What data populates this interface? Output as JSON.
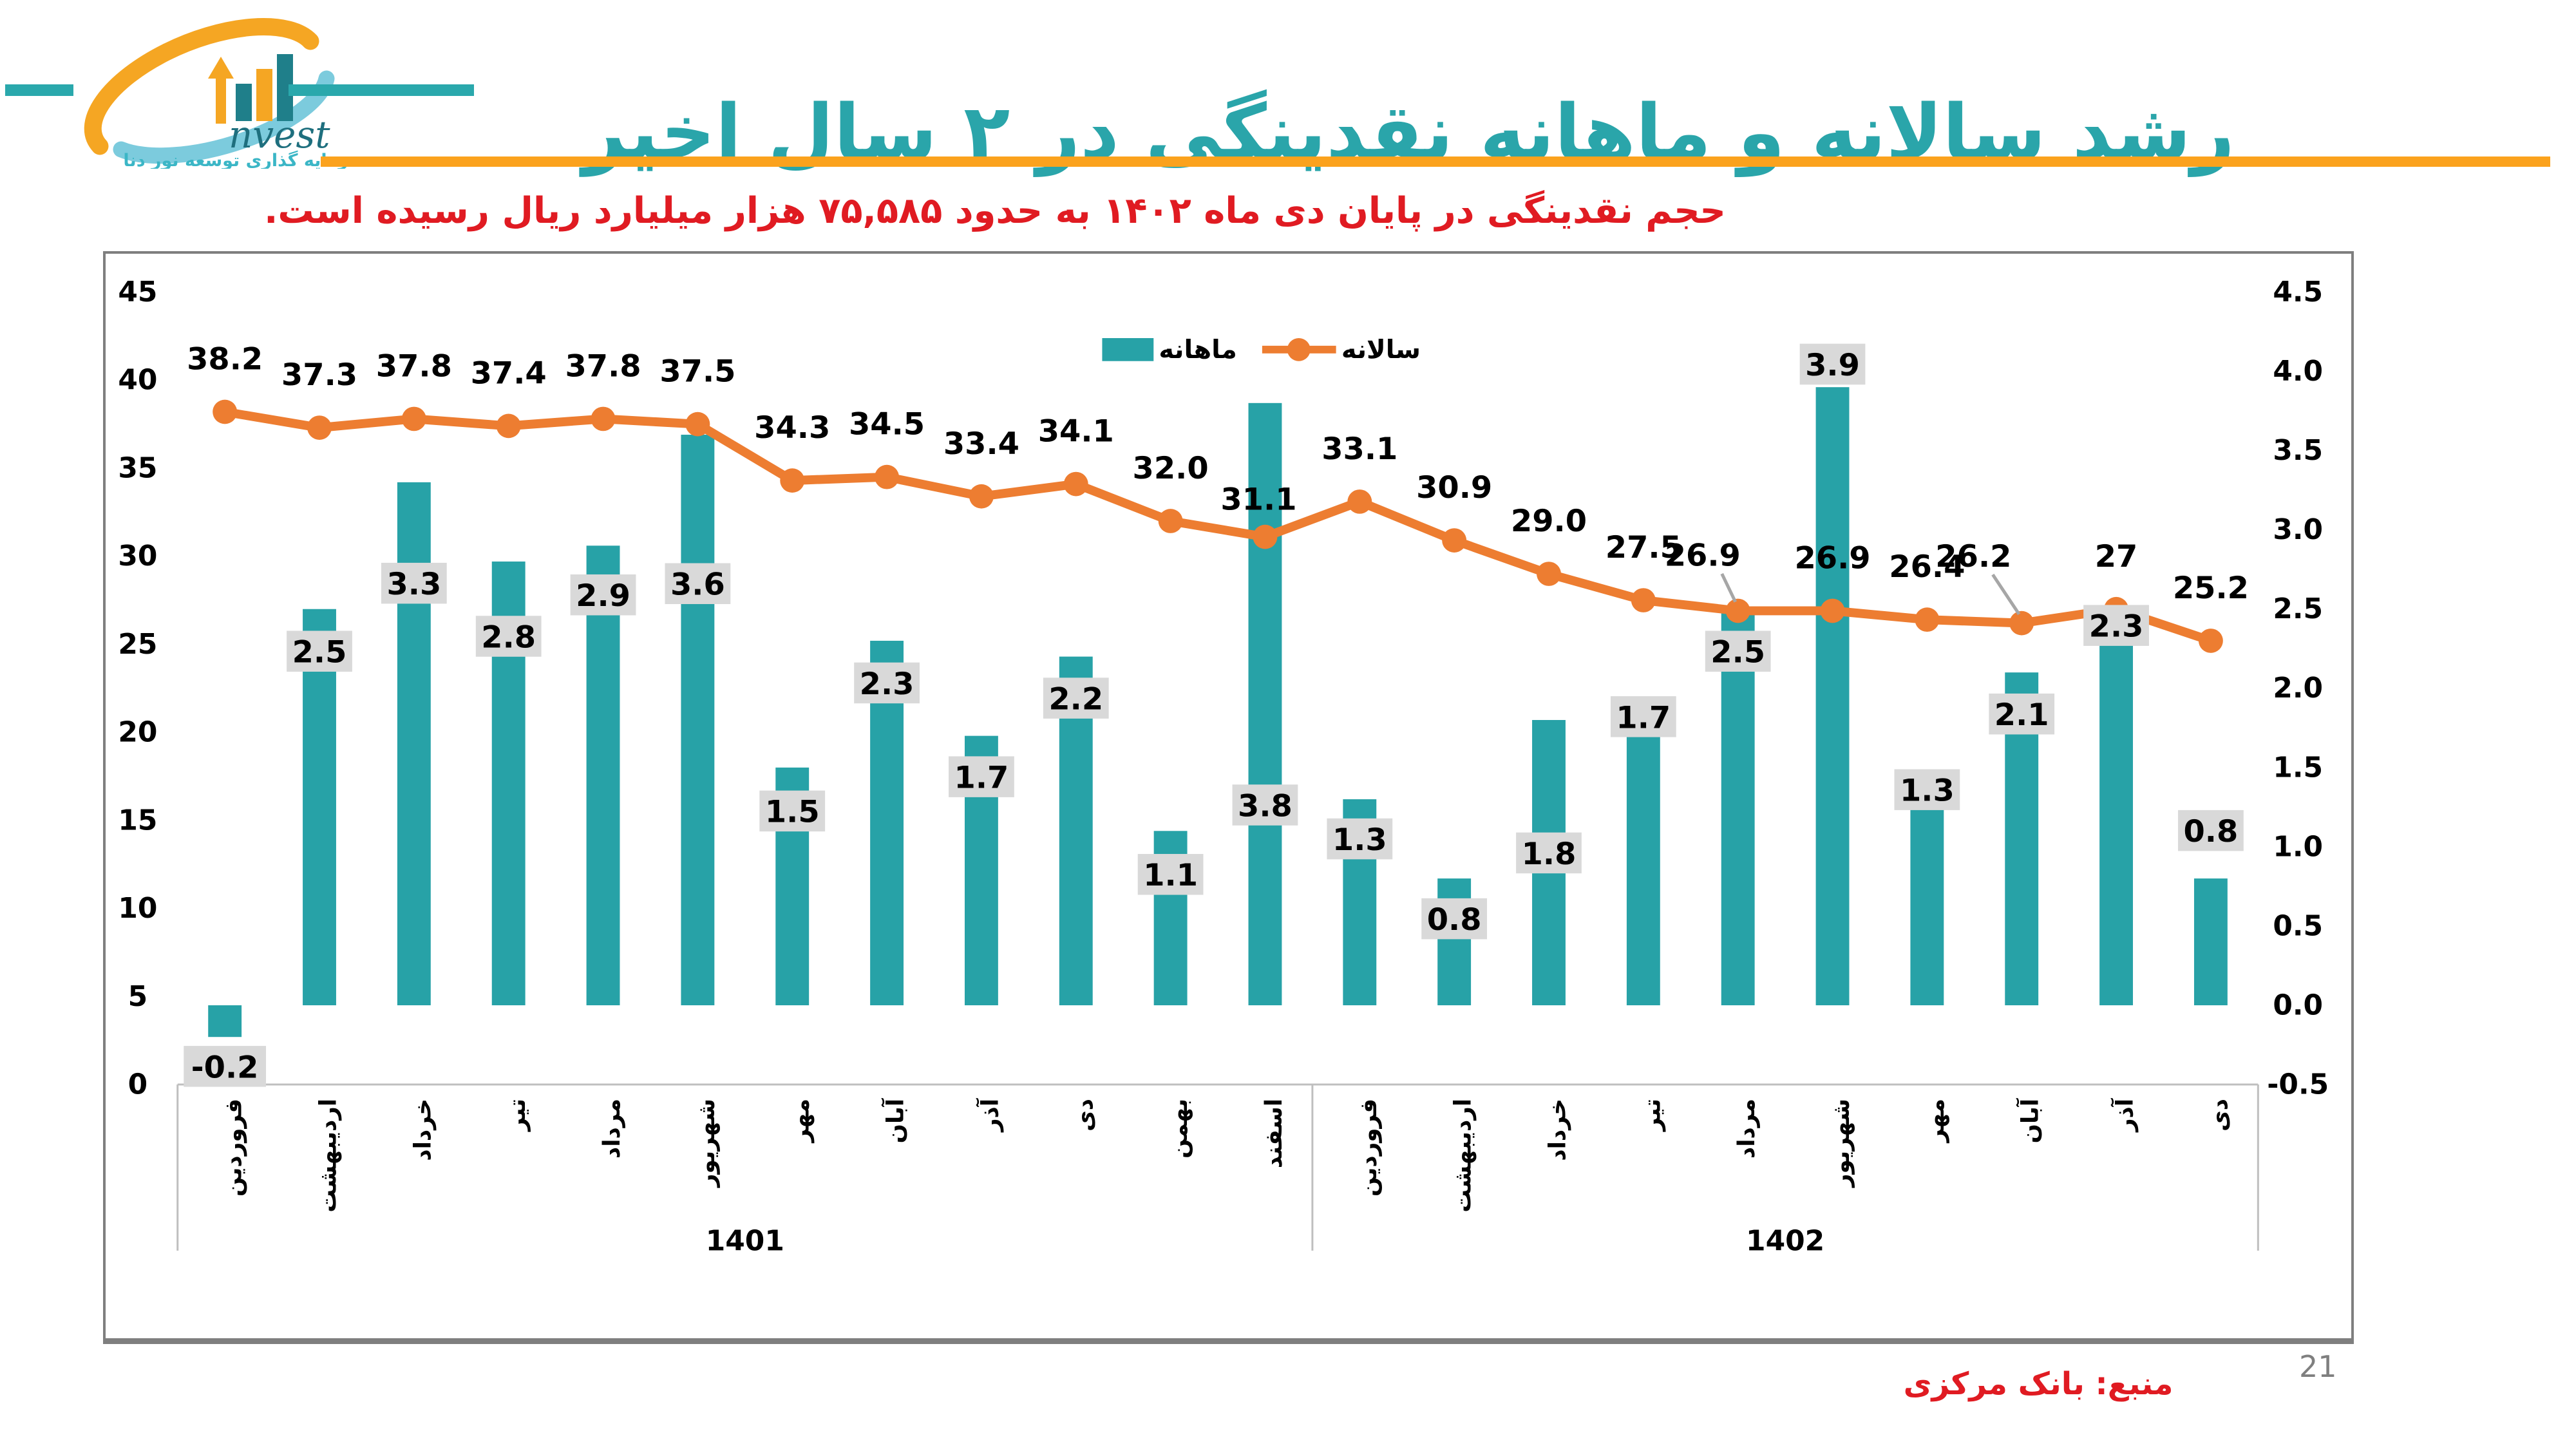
{
  "header": {
    "logo": {
      "brand": "nvest",
      "tagline": "سرمایه گذاری توسعه نور دنا"
    },
    "title": "رشد سالانه و ماهانه نقدینگی در ۲ سال اخیر",
    "subtitle": "حجم نقدینگی در پایان دی ماه ۱۴۰۲ به حدود ۷۵,۵۸۵ هزار میلیارد ریال رسیده است."
  },
  "footer": {
    "source": "منبع: بانک مرکزی",
    "page_number": "21"
  },
  "colors": {
    "bar_teal": "#27A2A7",
    "line_orange": "#ED7D31",
    "underline_orange": "#FBA21D",
    "title_teal": "#2AA5AA",
    "accent_red": "#E01B22",
    "label_bg_gray": "#D9D9D9",
    "chart_border_gray": "#7F7F7F",
    "axis_line_gray": "#BFBFBF",
    "leader_gray": "#A6A6A6",
    "text_black": "#000000",
    "logo_orange": "#F5A623",
    "logo_lightblue": "#7CCBDD",
    "logo_darkteal": "#1F7F8A"
  },
  "chart_data": {
    "type": "bar+line",
    "legend": [
      {
        "label": "ماهانه",
        "type": "bar",
        "color": "#27A2A7"
      },
      {
        "label": "سالانه",
        "type": "line",
        "color": "#ED7D31"
      }
    ],
    "left_axis": {
      "title": "",
      "min": 0,
      "max": 45,
      "ticks": [
        "45",
        "40",
        "35",
        "30",
        "25",
        "20",
        "15",
        "10",
        "5",
        "0"
      ]
    },
    "right_axis": {
      "title": "",
      "min": -0.5,
      "max": 4.5,
      "ticks": [
        "4.5",
        "4.0",
        "3.5",
        "3.0",
        "2.5",
        "2.0",
        "1.5",
        "1.0",
        "0.5",
        "0.0",
        "-0.5"
      ]
    },
    "groups": [
      {
        "year": "1401",
        "months": [
          "فروردین",
          "اردیبهشت",
          "خرداد",
          "تیر",
          "مرداد",
          "شهریور",
          "مهر",
          "آبان",
          "آذر",
          "دی",
          "بهمن",
          "اسفند"
        ]
      },
      {
        "year": "1402",
        "months": [
          "فروردین",
          "اردیبهشت",
          "خرداد",
          "تیر",
          "مرداد",
          "شهریور",
          "مهر",
          "آبان",
          "آذر",
          "دی"
        ]
      }
    ],
    "series": [
      {
        "name": "ماهانه",
        "type": "bar",
        "axis": "right",
        "values": [
          -0.2,
          2.5,
          3.3,
          2.8,
          2.9,
          3.6,
          1.5,
          2.3,
          1.7,
          2.2,
          1.1,
          3.8,
          1.3,
          0.8,
          1.8,
          1.7,
          2.5,
          3.9,
          1.3,
          2.1,
          2.3,
          0.8
        ],
        "labels": [
          "-0.2",
          "2.5",
          "3.3",
          "2.8",
          "2.9",
          "3.6",
          "1.5",
          "2.3",
          "1.7",
          "2.2",
          "1.1",
          "3.8",
          "1.3",
          "0.8",
          "1.8",
          "1.7",
          "2.5",
          "3.9",
          "1.3",
          "2.1",
          "2.3",
          "0.8"
        ]
      },
      {
        "name": "سالانه",
        "type": "line",
        "axis": "left",
        "values": [
          38.2,
          37.3,
          37.8,
          37.4,
          37.8,
          37.5,
          34.3,
          34.5,
          33.4,
          34.1,
          32.0,
          31.1,
          33.1,
          30.9,
          29.0,
          27.5,
          26.9,
          26.9,
          26.4,
          26.2,
          27,
          25.2
        ],
        "labels": [
          "38.2",
          "37.3",
          "37.8",
          "37.4",
          "37.8",
          "37.5",
          "34.3",
          "34.5",
          "33.4",
          "34.1",
          "32.0",
          "31.1",
          "33.1",
          "30.9",
          "29.0",
          "27.5",
          "26.9",
          "26.9",
          "26.4",
          "26.2",
          "27",
          "25.2"
        ]
      }
    ],
    "layout": {
      "grid": false,
      "legend_position": "top-center",
      "bar_label_dy": [
        0,
        66,
        158,
        117,
        77,
        233,
        68,
        66,
        64,
        65,
        68,
        629,
        62,
        63,
        208,
        -30,
        66,
        -36,
        -15,
        65,
        -24,
        -75
      ],
      "line_label_offset_default": [
        0,
        -82
      ],
      "line_label_offsets": {
        "11": [
          -10,
          -58
        ],
        "16": [
          -55,
          -86
        ],
        "19": [
          -75,
          -104
        ]
      },
      "leader_indices": [
        16,
        19
      ]
    }
  }
}
